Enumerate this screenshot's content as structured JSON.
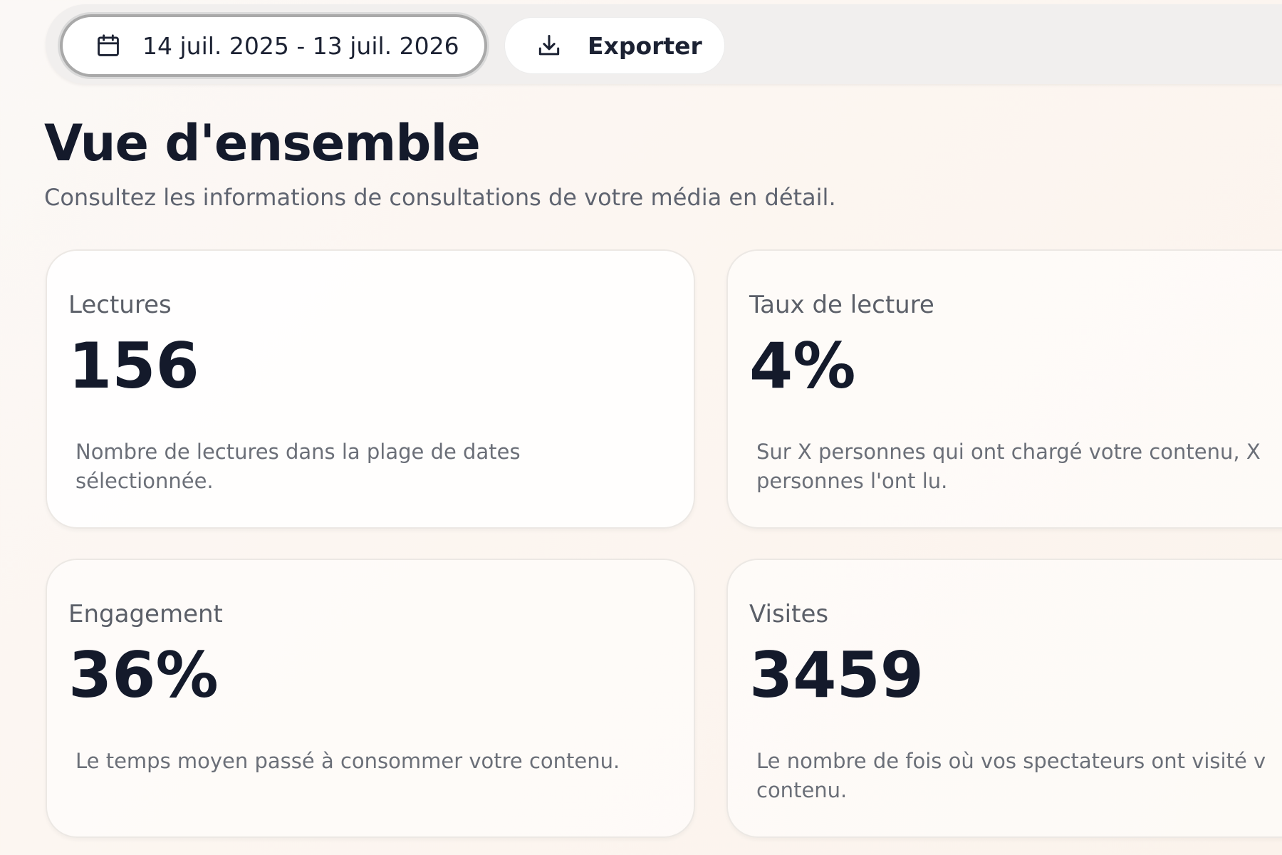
{
  "toolbar": {
    "date_range": "14 juil. 2025 - 13 juil. 2026",
    "date_icon": "calendar-icon",
    "export_label": "Exporter",
    "export_icon": "download-icon"
  },
  "header": {
    "title": "Vue d'ensemble",
    "subtitle": "Consultez les informations de consultations de votre média en détail."
  },
  "cards": [
    {
      "label": "Lectures",
      "value": "156",
      "description": "Nombre de lectures dans la plage de dates\nsélectionnée."
    },
    {
      "label": "Taux de lecture",
      "value": "4%",
      "description": "Sur X personnes qui ont chargé votre contenu, X\npersonnes l'ont lu."
    },
    {
      "label": "Engagement",
      "value": "36%",
      "description": "Le temps moyen passé à consommer votre contenu."
    },
    {
      "label": "Visites",
      "value": "3459",
      "description": "Le nombre de fois où vos spectateurs ont visité v\ncontenu."
    }
  ],
  "colors": {
    "text_primary": "#141a2b",
    "text_secondary": "#5f6470",
    "toolbar_bg": "#f1efee"
  }
}
